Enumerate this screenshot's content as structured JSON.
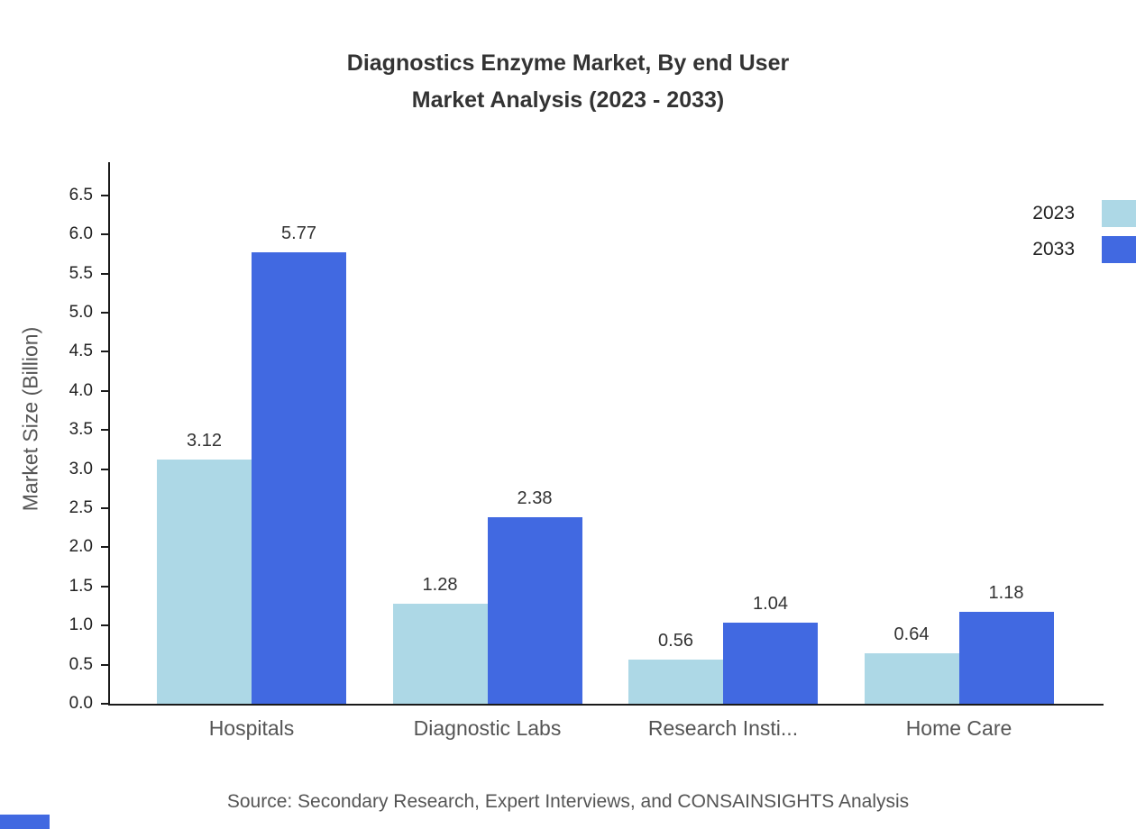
{
  "chart_data": {
    "type": "bar",
    "title_line1": "Diagnostics Enzyme Market, By end User",
    "title_line2": "Market Analysis (2023 - 2033)",
    "ylabel": "Market Size (Billion)",
    "xlabel": "",
    "categories": [
      "Hospitals",
      "Diagnostic Labs",
      "Research Insti...",
      "Home Care"
    ],
    "series": [
      {
        "name": "2023",
        "color": "#ADD8E6",
        "values": [
          3.12,
          1.28,
          0.56,
          0.64
        ]
      },
      {
        "name": "2033",
        "color": "#4169E1",
        "values": [
          5.77,
          2.38,
          1.04,
          1.18
        ]
      }
    ],
    "ylim": [
      0,
      6.5
    ],
    "ytick_step": 0.5,
    "grid": false,
    "legend_position": "top-right",
    "source": "Source: Secondary Research, Expert Interviews, and CONSAINSIGHTS Analysis"
  },
  "colors": {
    "axis": "#1a1a1a",
    "title_text": "#333333",
    "tick_text": "#222222",
    "category_text": "#555555",
    "value_text": "#333333",
    "source_text": "#555555",
    "brand_bar": "#4169E1"
  }
}
